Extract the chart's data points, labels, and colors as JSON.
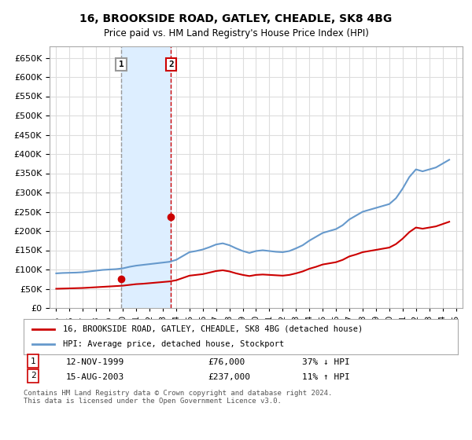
{
  "title": "16, BROOKSIDE ROAD, GATLEY, CHEADLE, SK8 4BG",
  "subtitle": "Price paid vs. HM Land Registry's House Price Index (HPI)",
  "legend_line1": "16, BROOKSIDE ROAD, GATLEY, CHEADLE, SK8 4BG (detached house)",
  "legend_line2": "HPI: Average price, detached house, Stockport",
  "transaction1_label": "1",
  "transaction1_date": "12-NOV-1999",
  "transaction1_price": "£76,000",
  "transaction1_hpi": "37% ↓ HPI",
  "transaction2_label": "2",
  "transaction2_date": "15-AUG-2003",
  "transaction2_price": "£237,000",
  "transaction2_hpi": "11% ↑ HPI",
  "footnote": "Contains HM Land Registry data © Crown copyright and database right 2024.\nThis data is licensed under the Open Government Licence v3.0.",
  "hpi_color": "#6699cc",
  "price_color": "#cc0000",
  "transaction1_color": "#cc0000",
  "transaction2_color": "#cc0000",
  "vline1_color": "#999999",
  "vline2_color": "#cc0000",
  "shade_color": "#ddeeff",
  "ylim": [
    0,
    680000
  ],
  "yticks": [
    0,
    50000,
    100000,
    150000,
    200000,
    250000,
    300000,
    350000,
    400000,
    450000,
    500000,
    550000,
    600000,
    650000
  ],
  "background_color": "#ffffff",
  "grid_color": "#dddddd",
  "hpi_years": [
    1995,
    1995.5,
    1996,
    1996.5,
    1997,
    1997.5,
    1998,
    1998.5,
    1999,
    1999.5,
    2000,
    2000.5,
    2001,
    2001.5,
    2002,
    2002.5,
    2003,
    2003.5,
    2004,
    2004.5,
    2005,
    2005.5,
    2006,
    2006.5,
    2007,
    2007.5,
    2008,
    2008.5,
    2009,
    2009.5,
    2010,
    2010.5,
    2011,
    2011.5,
    2012,
    2012.5,
    2013,
    2013.5,
    2014,
    2014.5,
    2015,
    2015.5,
    2016,
    2016.5,
    2017,
    2017.5,
    2018,
    2018.5,
    2019,
    2019.5,
    2020,
    2020.5,
    2021,
    2021.5,
    2022,
    2022.5,
    2023,
    2023.5,
    2024,
    2024.5
  ],
  "hpi_values": [
    90000,
    91000,
    91500,
    92000,
    93000,
    95000,
    97000,
    99000,
    100000,
    101000,
    103000,
    107000,
    110000,
    112000,
    114000,
    116000,
    118000,
    120000,
    125000,
    135000,
    145000,
    148000,
    152000,
    158000,
    165000,
    168000,
    163000,
    155000,
    148000,
    143000,
    148000,
    150000,
    148000,
    146000,
    145000,
    148000,
    155000,
    163000,
    175000,
    185000,
    195000,
    200000,
    205000,
    215000,
    230000,
    240000,
    250000,
    255000,
    260000,
    265000,
    270000,
    285000,
    310000,
    340000,
    360000,
    355000,
    360000,
    365000,
    375000,
    385000
  ],
  "price_years": [
    1995,
    1995.5,
    1996,
    1996.5,
    1997,
    1997.5,
    1998,
    1998.5,
    1999,
    1999.5,
    2000,
    2000.5,
    2001,
    2001.5,
    2002,
    2002.5,
    2003,
    2003.5,
    2004,
    2004.5,
    2005,
    2005.5,
    2006,
    2006.5,
    2007,
    2007.5,
    2008,
    2008.5,
    2009,
    2009.5,
    2010,
    2010.5,
    2011,
    2011.5,
    2012,
    2012.5,
    2013,
    2013.5,
    2014,
    2014.5,
    2015,
    2015.5,
    2016,
    2016.5,
    2017,
    2017.5,
    2018,
    2018.5,
    2019,
    2019.5,
    2020,
    2020.5,
    2021,
    2021.5,
    2022,
    2022.5,
    2023,
    2023.5,
    2024,
    2024.5
  ],
  "price_values": [
    50000,
    50500,
    51000,
    51500,
    52000,
    53000,
    54000,
    55000,
    56000,
    57000,
    58000,
    60000,
    62000,
    63000,
    64500,
    66000,
    67500,
    69000,
    72000,
    78000,
    84000,
    86000,
    88000,
    92000,
    96000,
    98000,
    95000,
    90000,
    86000,
    83000,
    86000,
    87000,
    86000,
    85000,
    84000,
    86000,
    90000,
    95000,
    102000,
    107000,
    113000,
    116000,
    119000,
    125000,
    134000,
    139000,
    145000,
    148000,
    151000,
    154000,
    157000,
    166000,
    180000,
    197000,
    209000,
    206000,
    209000,
    212000,
    218000,
    224000
  ],
  "transaction1_x": 1999.87,
  "transaction1_y": 76000,
  "transaction2_x": 2003.62,
  "transaction2_y": 237000,
  "vline1_x": 1999.87,
  "vline2_x": 2003.62,
  "shade_x1": 1999.87,
  "shade_x2": 2003.62,
  "xlim": [
    1994.5,
    2025.5
  ],
  "xtick_years": [
    1995,
    1996,
    1997,
    1998,
    1999,
    2000,
    2001,
    2002,
    2003,
    2004,
    2005,
    2006,
    2007,
    2008,
    2009,
    2010,
    2011,
    2012,
    2013,
    2014,
    2015,
    2016,
    2017,
    2018,
    2019,
    2020,
    2021,
    2022,
    2023,
    2024,
    2025
  ]
}
